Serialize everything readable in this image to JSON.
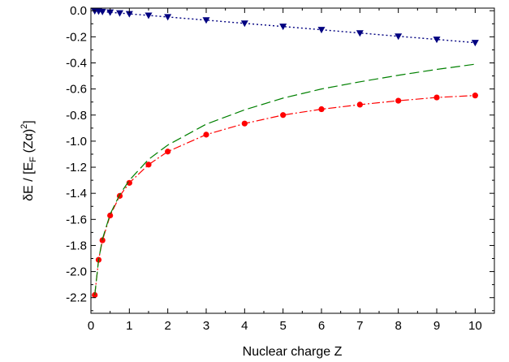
{
  "chart_data": {
    "type": "line",
    "xlabel": "Nuclear charge Z",
    "ylabel_parts": {
      "delta_e": "δE / [E",
      "sub_f": "F",
      "z_alpha_open": " (Z",
      "alpha": "α",
      "close": ")",
      "exp_2": "2",
      "end": "]"
    },
    "xlim": [
      0,
      10.5
    ],
    "ylim": [
      -2.32,
      0.02
    ],
    "x_ticks": [
      0,
      1,
      2,
      3,
      4,
      5,
      6,
      7,
      8,
      9,
      10
    ],
    "x_tick_labels": [
      "0",
      "1",
      "2",
      "3",
      "4",
      "5",
      "6",
      "7",
      "8",
      "9",
      "10"
    ],
    "y_ticks": [
      0.0,
      -0.2,
      -0.4,
      -0.6,
      -0.8,
      -1.0,
      -1.2,
      -1.4,
      -1.6,
      -1.8,
      -2.0,
      -2.2
    ],
    "y_tick_labels": [
      "0.0",
      "-0.2",
      "-0.4",
      "-0.6",
      "-0.8",
      "-1.0",
      "-1.2",
      "-1.4",
      "-1.6",
      "-1.8",
      "-2.0",
      "-2.2"
    ],
    "grid": false,
    "series": [
      {
        "style": "dash-dot line with circle markers",
        "color": "#ff0000",
        "x": [
          0.1,
          0.2,
          0.3,
          0.5,
          0.75,
          1.0,
          1.5,
          2.0,
          3.0,
          4.0,
          5.0,
          6.0,
          7.0,
          8.0,
          9.0,
          10.0
        ],
        "y": [
          -2.18,
          -1.91,
          -1.76,
          -1.57,
          -1.42,
          -1.32,
          -1.18,
          -1.08,
          -0.95,
          -0.865,
          -0.8,
          -0.755,
          -0.72,
          -0.69,
          -0.665,
          -0.65
        ]
      },
      {
        "style": "long-dash line",
        "color": "#008000",
        "x": [
          0.1,
          0.2,
          0.3,
          0.5,
          0.75,
          1.0,
          1.5,
          2.0,
          3.0,
          4.0,
          5.0,
          6.0,
          7.0,
          8.0,
          9.0,
          10.0
        ],
        "y": [
          -2.18,
          -1.91,
          -1.75,
          -1.56,
          -1.41,
          -1.3,
          -1.14,
          -1.03,
          -0.87,
          -0.76,
          -0.67,
          -0.6,
          -0.545,
          -0.495,
          -0.45,
          -0.41
        ]
      },
      {
        "style": "dotted line with down-triangle markers",
        "color": "#000080",
        "x": [
          0.1,
          0.2,
          0.3,
          0.5,
          0.75,
          1.0,
          1.5,
          2.0,
          3.0,
          4.0,
          5.0,
          6.0,
          7.0,
          8.0,
          9.0,
          10.0
        ],
        "y": [
          -0.002,
          -0.004,
          -0.007,
          -0.012,
          -0.018,
          -0.024,
          -0.036,
          -0.048,
          -0.072,
          -0.097,
          -0.121,
          -0.146,
          -0.171,
          -0.196,
          -0.22,
          -0.245
        ]
      }
    ]
  }
}
